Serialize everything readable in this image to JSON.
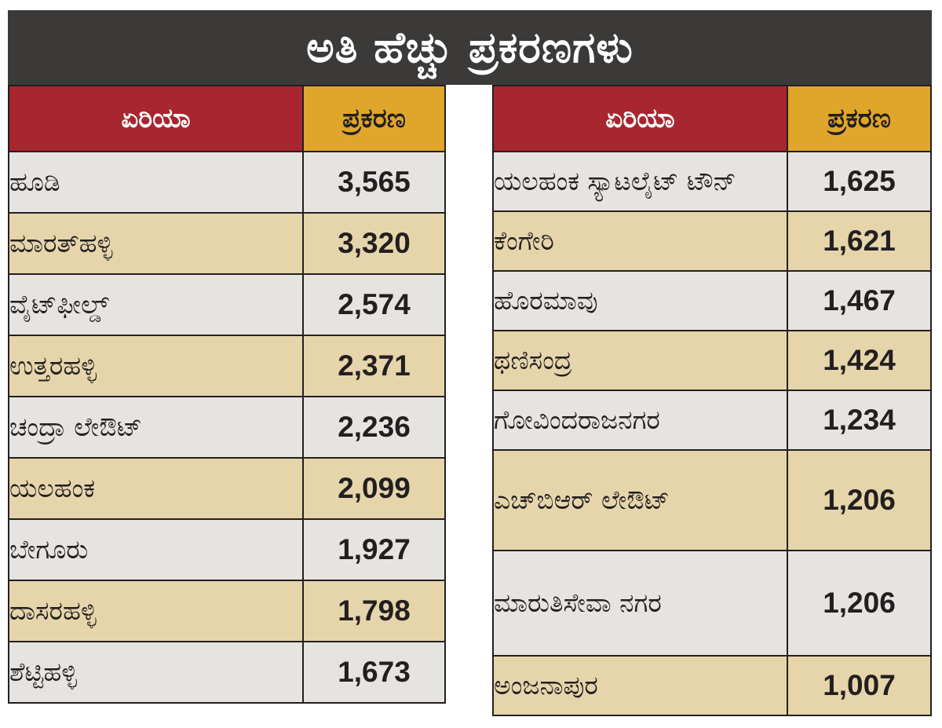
{
  "chart_data": {
    "type": "table",
    "title": "ಅತಿ ಹೆಚ್ಚು ಪ್ರಕರಣಗಳು",
    "columns": [
      "ಏರಿಯಾ",
      "ಪ್ರಕರಣ"
    ],
    "tables": [
      {
        "rows": [
          {
            "area": "ಹೂಡಿ",
            "cases": "3,565"
          },
          {
            "area": "ಮಾರತ್‌ಹಳ್ಳಿ",
            "cases": "3,320"
          },
          {
            "area": "ವೈಟ್‌ಫೀಲ್ಡ್",
            "cases": "2,574"
          },
          {
            "area": "ಉತ್ತರಹಳ್ಳಿ",
            "cases": "2,371"
          },
          {
            "area": "ಚಂದ್ರಾ ಲೇಔಟ್",
            "cases": "2,236"
          },
          {
            "area": "ಯಲಹಂಕ",
            "cases": "2,099"
          },
          {
            "area": "ಬೇಗೂರು",
            "cases": "1,927"
          },
          {
            "area": "ದಾಸರಹಳ್ಳಿ",
            "cases": "1,798"
          },
          {
            "area": "ಶೆಟ್ಟಿಹಳ್ಳಿ",
            "cases": "1,673"
          }
        ]
      },
      {
        "rows": [
          {
            "area": "ಯಲಹಂಕ ಸ್ಯಾಟಲೈಟ್ ಟೌನ್",
            "cases": "1,625"
          },
          {
            "area": "ಕೆಂಗೇರಿ",
            "cases": "1,621"
          },
          {
            "area": "ಹೊರಮಾವು",
            "cases": "1,467"
          },
          {
            "area": "ಥಣಿಸಂದ್ರ",
            "cases": "1,424"
          },
          {
            "area": "ಗೋವಿಂದರಾಜನಗರ",
            "cases": "1,234"
          },
          {
            "area": "ಎಚ್‌ಬಿಆರ್ ಲೇಔಟ್",
            "cases": "1,206"
          },
          {
            "area": "ಮಾರುತಿಸೇವಾ ನಗರ",
            "cases": "1,206"
          },
          {
            "area": "ಅಂಜನಾಪುರ",
            "cases": "1,007"
          }
        ]
      }
    ],
    "colors": {
      "title_bg": "#3b3a39",
      "area_header_bg": "#a8262f",
      "cases_header_bg": "#e0a62b",
      "row_light": "#e6e4e1",
      "row_tan": "#e6d5ab"
    }
  }
}
